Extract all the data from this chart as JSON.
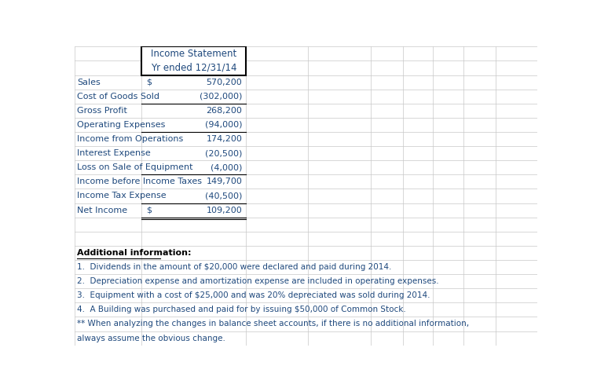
{
  "title_line1": "Income Statement",
  "title_line2": "Yr ended 12/31/14",
  "title_color": "#1F497D",
  "rows": [
    {
      "label": "Sales",
      "dollar_sign": "$",
      "value": "570,200",
      "label_color": "#1F497D",
      "value_color": "#1F497D",
      "dollar_color": "#1F497D",
      "underline_bottom": false,
      "double_underline": false
    },
    {
      "label": "Cost of Goods Sold",
      "dollar_sign": "",
      "value": "(302,000)",
      "label_color": "#1F497D",
      "value_color": "#1F497D",
      "dollar_color": "#1F497D",
      "underline_bottom": true,
      "double_underline": false
    },
    {
      "label": "Gross Profit",
      "dollar_sign": "",
      "value": "268,200",
      "label_color": "#1F497D",
      "value_color": "#1F497D",
      "dollar_color": "#1F497D",
      "underline_bottom": false,
      "double_underline": false
    },
    {
      "label": "Operating Expenses",
      "dollar_sign": "",
      "value": "(94,000)",
      "label_color": "#1F497D",
      "value_color": "#1F497D",
      "dollar_color": "#1F497D",
      "underline_bottom": true,
      "double_underline": false
    },
    {
      "label": "Income from Operations",
      "dollar_sign": "",
      "value": "174,200",
      "label_color": "#1F497D",
      "value_color": "#1F497D",
      "dollar_color": "#1F497D",
      "underline_bottom": false,
      "double_underline": false
    },
    {
      "label": "Interest Expense",
      "dollar_sign": "",
      "value": "(20,500)",
      "label_color": "#1F497D",
      "value_color": "#1F497D",
      "dollar_color": "#1F497D",
      "underline_bottom": false,
      "double_underline": false
    },
    {
      "label": "Loss on Sale of Equipment",
      "dollar_sign": "",
      "value": "(4,000)",
      "label_color": "#1F497D",
      "value_color": "#1F497D",
      "dollar_color": "#1F497D",
      "underline_bottom": true,
      "double_underline": false
    },
    {
      "label": "Income before Income Taxes",
      "dollar_sign": "",
      "value": "149,700",
      "label_color": "#1F497D",
      "value_color": "#1F497D",
      "dollar_color": "#1F497D",
      "underline_bottom": false,
      "double_underline": false
    },
    {
      "label": "Income Tax Expense",
      "dollar_sign": "",
      "value": "(40,500)",
      "label_color": "#1F497D",
      "value_color": "#1F497D",
      "dollar_color": "#1F497D",
      "underline_bottom": true,
      "double_underline": false
    },
    {
      "label": "Net Income",
      "dollar_sign": "$",
      "value": "109,200",
      "label_color": "#1F497D",
      "value_color": "#1F497D",
      "dollar_color": "#1F497D",
      "underline_bottom": false,
      "double_underline": true
    }
  ],
  "additional_info_label": "Additional information:",
  "additional_info_lines": [
    "1.  Dividends in the amount of $20,000 were declared and paid during 2014.",
    "2.  Depreciation expense and amortization expense are included in operating expenses.",
    "3.  Equipment with a cost of $25,000 and was 20% depreciated was sold during 2014.",
    "4.  A Building was purchased and paid for by issuing $50,000 of Common Stock.",
    "** When analyzing the changes in balance sheet accounts, if there is no additional information,",
    "always assume the obvious change."
  ],
  "additional_info_color": "#1F497D",
  "grid_color": "#C8C8C8",
  "background_color": "#FFFFFF",
  "col_dividers": [
    0.145,
    0.37,
    0.505,
    0.64,
    0.71,
    0.775,
    0.84,
    0.91,
    1.0
  ]
}
